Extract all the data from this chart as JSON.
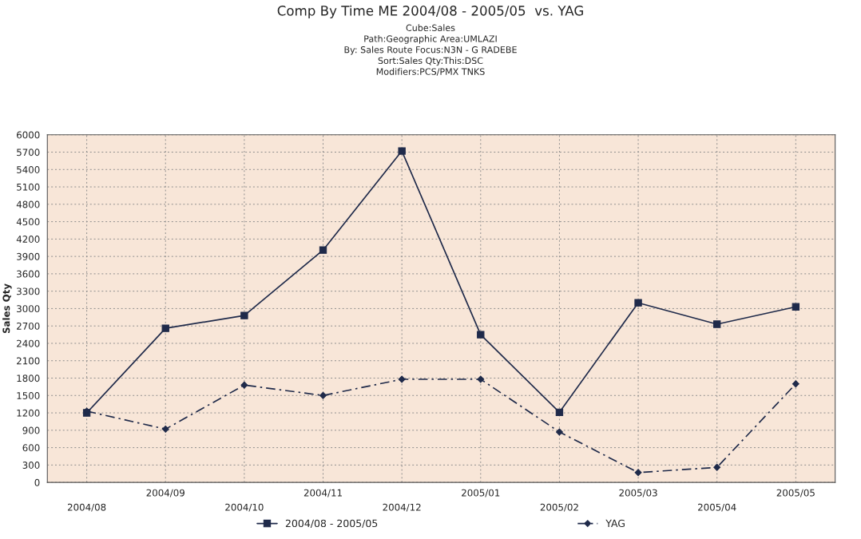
{
  "chart_data": {
    "type": "line",
    "title": "Comp By Time ME 2004/08 - 2005/05  vs. YAG",
    "subtitle": "Cube:Sales\nPath:Geographic Area:UMLAZI\nBy: Sales Route Focus:N3N - G RADEBE\nSort:Sales Qty:This:DSC\nModifiers:PCS/PMX TNKS",
    "ylabel": "Sales Qty",
    "categories": [
      "2004/08",
      "2004/09",
      "2004/10",
      "2004/11",
      "2004/12",
      "2005/01",
      "2005/02",
      "2005/03",
      "2005/04",
      "2005/05"
    ],
    "series": [
      {
        "name": "2004/08 - 2005/05",
        "color": "#1f2a4a",
        "marker": "square",
        "line_style": "solid",
        "values": [
          1200,
          2660,
          2880,
          4010,
          5720,
          2550,
          1210,
          3100,
          2730,
          3030
        ]
      },
      {
        "name": "YAG",
        "color": "#1f2a4a",
        "marker": "diamond",
        "line_style": "dashed",
        "values": [
          1230,
          920,
          1680,
          1500,
          1780,
          1780,
          870,
          170,
          260,
          1700
        ]
      }
    ],
    "ylim": [
      0,
      6000
    ],
    "yticks": [
      0,
      300,
      600,
      900,
      1200,
      1500,
      1800,
      2100,
      2400,
      2700,
      3000,
      3300,
      3600,
      3900,
      4200,
      4500,
      4800,
      5100,
      5400,
      5700,
      6000
    ],
    "grid": true,
    "legend": "bottom"
  }
}
